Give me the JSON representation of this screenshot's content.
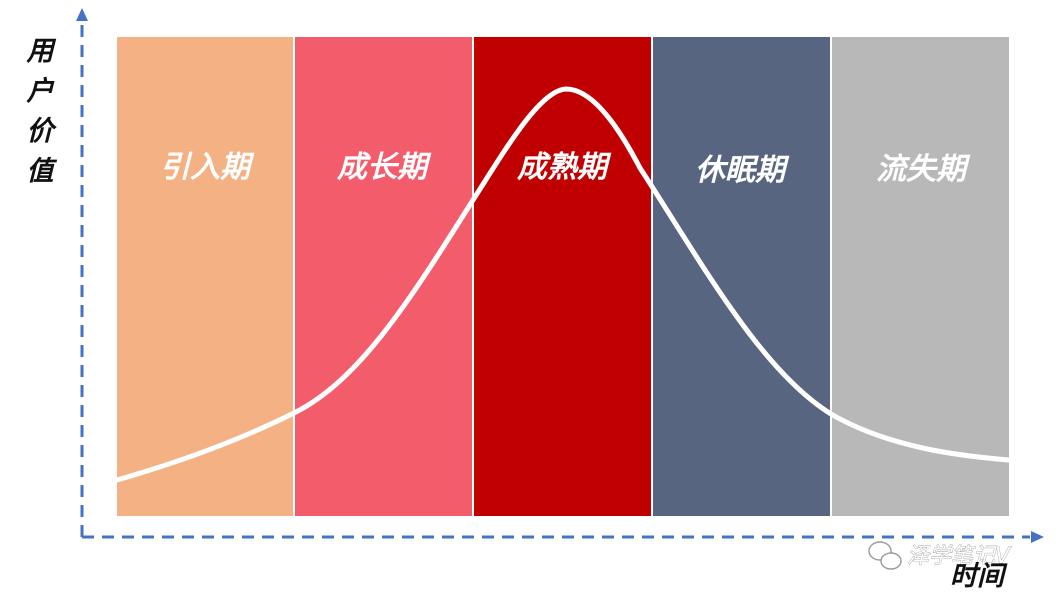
{
  "diagram": {
    "y_axis_label": [
      "用",
      "户",
      "价",
      "值"
    ],
    "x_axis_label": "时间",
    "watermark": "泽学笔记V",
    "axis_color": "#4472c4",
    "curve_color": "#ffffff",
    "stages": [
      {
        "label": "引入期",
        "color": "#f4b183"
      },
      {
        "label": "成长期",
        "color": "#f25c6b"
      },
      {
        "label": "成熟期",
        "color": "#c00000"
      },
      {
        "label": "休眠期",
        "color": "#586581"
      },
      {
        "label": "流失期",
        "color": "#b8b8b8"
      }
    ]
  }
}
